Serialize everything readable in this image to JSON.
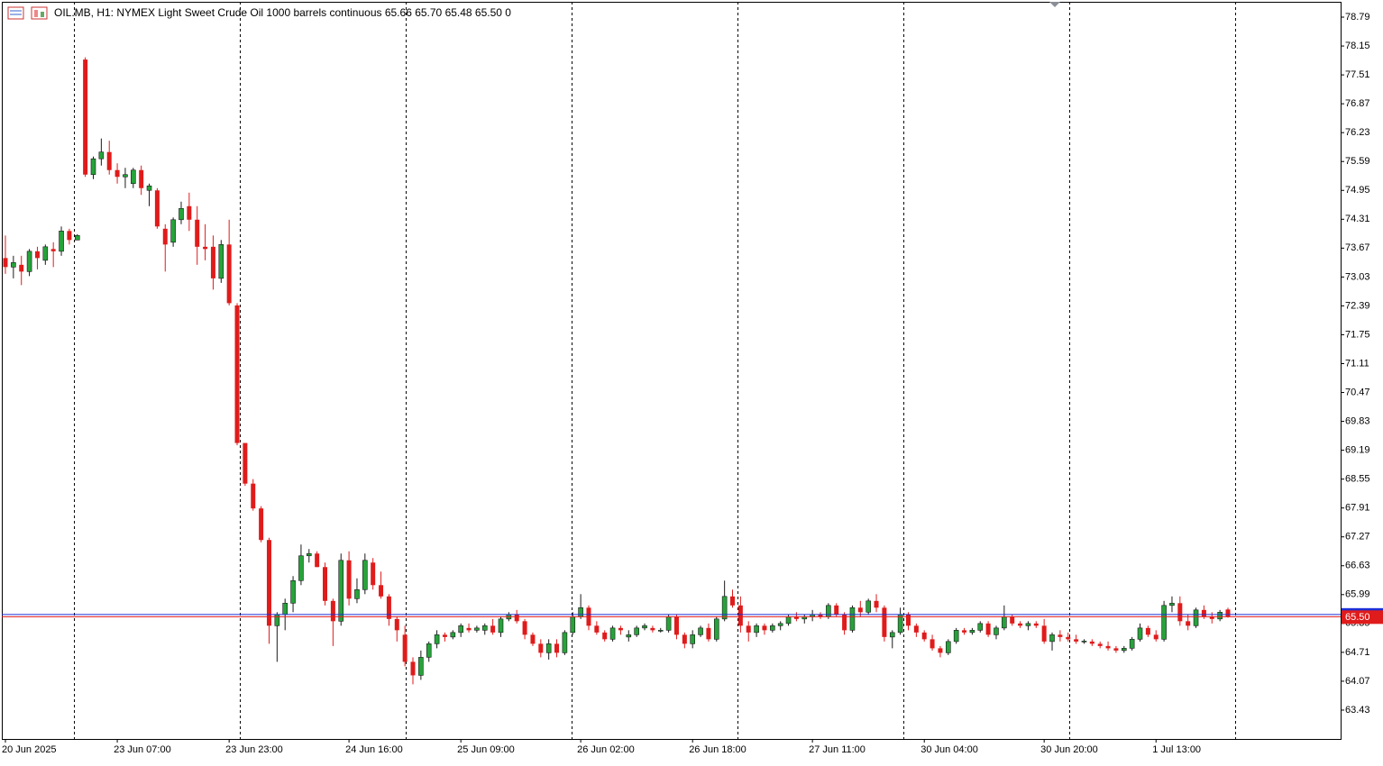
{
  "chart_data": {
    "type": "candlestick",
    "title": "OIL.MB, H1:  NYMEX Light Sweet Crude Oil 1000 barrels continuous  65.66 65.70 65.48 65.50  0",
    "up_color": "#26a33a",
    "down_color": "#e01b1b",
    "bid_color": "#e01b1b",
    "ask_color": "#1c2fd6",
    "ylim": [
      62.79,
      79.13
    ],
    "yticks": [
      78.79,
      78.15,
      77.51,
      76.87,
      76.23,
      75.59,
      74.95,
      74.31,
      73.67,
      73.03,
      72.39,
      71.75,
      71.11,
      70.47,
      69.83,
      69.19,
      68.55,
      67.91,
      67.27,
      66.63,
      65.99,
      65.35,
      64.71,
      64.07,
      63.43
    ],
    "xticks": [
      {
        "value": 0,
        "label": "20 Jun 2025"
      },
      {
        "value": 14,
        "label": "23 Jun 07:00"
      },
      {
        "value": 28,
        "label": "23 Jun 23:00"
      },
      {
        "value": 43,
        "label": "24 Jun 16:00"
      },
      {
        "value": 57,
        "label": "25 Jun 09:00"
      },
      {
        "value": 72,
        "label": "26 Jun 02:00"
      },
      {
        "value": 86,
        "label": "26 Jun 18:00"
      },
      {
        "value": 101,
        "label": "27 Jun 11:00"
      },
      {
        "value": 115,
        "label": "30 Jun 04:00"
      },
      {
        "value": 130,
        "label": "30 Jun 20:00"
      },
      {
        "value": 144,
        "label": "1 Jul 13:00"
      }
    ],
    "bid": {
      "value": 65.5,
      "label": "65.50"
    },
    "ask": 65.55,
    "candles": [
      [
        73.45,
        73.95,
        73.1,
        73.25
      ],
      [
        73.25,
        73.5,
        73.0,
        73.35
      ],
      [
        73.3,
        73.5,
        72.85,
        73.15
      ],
      [
        73.15,
        73.65,
        73.05,
        73.6
      ],
      [
        73.6,
        73.7,
        73.2,
        73.45
      ],
      [
        73.4,
        73.75,
        73.3,
        73.7
      ],
      [
        73.65,
        73.8,
        73.25,
        73.6
      ],
      [
        73.6,
        74.15,
        73.5,
        74.05
      ],
      [
        74.05,
        74.1,
        73.75,
        73.85
      ],
      [
        73.85,
        73.98,
        73.85,
        73.95
      ],
      [
        77.85,
        77.9,
        75.25,
        75.3
      ],
      [
        75.3,
        75.7,
        75.2,
        75.65
      ],
      [
        75.65,
        76.1,
        75.5,
        75.8
      ],
      [
        75.8,
        76.05,
        75.3,
        75.4
      ],
      [
        75.4,
        75.55,
        75.1,
        75.25
      ],
      [
        75.25,
        75.45,
        75.0,
        75.3
      ],
      [
        75.1,
        75.45,
        75.0,
        75.4
      ],
      [
        75.4,
        75.5,
        74.85,
        75.0
      ],
      [
        74.95,
        75.1,
        74.6,
        75.05
      ],
      [
        74.95,
        75.0,
        74.1,
        74.15
      ],
      [
        74.1,
        74.2,
        73.15,
        73.75
      ],
      [
        73.8,
        74.35,
        73.7,
        74.3
      ],
      [
        74.3,
        74.7,
        74.2,
        74.55
      ],
      [
        74.6,
        74.9,
        74.05,
        74.3
      ],
      [
        74.3,
        74.6,
        73.3,
        73.7
      ],
      [
        73.7,
        74.2,
        73.4,
        73.65
      ],
      [
        73.7,
        73.95,
        72.75,
        73.0
      ],
      [
        73.0,
        73.85,
        72.9,
        73.75
      ],
      [
        73.75,
        74.3,
        72.4,
        72.45
      ],
      [
        72.4,
        72.45,
        69.3,
        69.35
      ],
      [
        69.35,
        69.35,
        68.4,
        68.45
      ],
      [
        68.45,
        68.55,
        67.85,
        67.9
      ],
      [
        67.9,
        67.95,
        67.15,
        67.2
      ],
      [
        67.2,
        67.25,
        64.9,
        65.3
      ],
      [
        65.3,
        65.6,
        64.5,
        65.55
      ],
      [
        65.55,
        65.9,
        65.2,
        65.8
      ],
      [
        65.8,
        66.4,
        65.6,
        66.3
      ],
      [
        66.3,
        67.1,
        66.2,
        66.85
      ],
      [
        66.85,
        67.0,
        66.7,
        66.9
      ],
      [
        66.9,
        66.95,
        66.6,
        66.6
      ],
      [
        66.6,
        66.7,
        65.75,
        65.85
      ],
      [
        65.85,
        65.9,
        64.85,
        65.4
      ],
      [
        65.4,
        66.9,
        65.3,
        66.75
      ],
      [
        66.75,
        66.95,
        65.75,
        65.9
      ],
      [
        65.9,
        66.35,
        65.8,
        66.1
      ],
      [
        66.1,
        66.9,
        66.0,
        66.75
      ],
      [
        66.7,
        66.8,
        66.1,
        66.2
      ],
      [
        66.2,
        66.5,
        65.9,
        65.95
      ],
      [
        65.95,
        66.0,
        65.3,
        65.45
      ],
      [
        65.45,
        65.5,
        64.95,
        65.2
      ],
      [
        65.1,
        65.3,
        64.4,
        64.5
      ],
      [
        64.5,
        64.6,
        64.0,
        64.2
      ],
      [
        64.2,
        64.75,
        64.1,
        64.6
      ],
      [
        64.6,
        64.95,
        64.5,
        64.9
      ],
      [
        64.9,
        65.2,
        64.8,
        65.1
      ],
      [
        65.1,
        65.15,
        64.95,
        65.05
      ],
      [
        65.05,
        65.2,
        65.0,
        65.15
      ],
      [
        65.15,
        65.35,
        65.05,
        65.3
      ],
      [
        65.25,
        65.35,
        65.15,
        65.2
      ],
      [
        65.2,
        65.3,
        65.15,
        65.25
      ],
      [
        65.2,
        65.35,
        65.1,
        65.3
      ],
      [
        65.3,
        65.45,
        65.1,
        65.15
      ],
      [
        65.15,
        65.5,
        65.05,
        65.45
      ],
      [
        65.45,
        65.6,
        65.4,
        65.55
      ],
      [
        65.55,
        65.65,
        65.35,
        65.4
      ],
      [
        65.4,
        65.45,
        65.0,
        65.1
      ],
      [
        65.1,
        65.15,
        64.85,
        64.9
      ],
      [
        64.9,
        65.0,
        64.6,
        64.7
      ],
      [
        64.7,
        65.0,
        64.55,
        64.9
      ],
      [
        64.9,
        65.0,
        64.6,
        64.7
      ],
      [
        64.7,
        65.2,
        64.65,
        65.15
      ],
      [
        65.15,
        65.6,
        65.1,
        65.5
      ],
      [
        65.5,
        66.0,
        65.45,
        65.7
      ],
      [
        65.7,
        65.75,
        65.2,
        65.3
      ],
      [
        65.3,
        65.4,
        65.1,
        65.15
      ],
      [
        65.15,
        65.2,
        64.95,
        65.0
      ],
      [
        65.0,
        65.3,
        64.95,
        65.25
      ],
      [
        65.25,
        65.3,
        65.1,
        65.2
      ],
      [
        65.05,
        65.2,
        64.95,
        65.1
      ],
      [
        65.1,
        65.3,
        65.05,
        65.25
      ],
      [
        65.25,
        65.35,
        65.2,
        65.3
      ],
      [
        65.25,
        65.3,
        65.15,
        65.2
      ],
      [
        65.2,
        65.25,
        65.15,
        65.2
      ],
      [
        65.2,
        65.55,
        65.15,
        65.5
      ],
      [
        65.5,
        65.55,
        65.0,
        65.1
      ],
      [
        65.1,
        65.15,
        64.8,
        64.9
      ],
      [
        64.9,
        65.2,
        64.8,
        65.1
      ],
      [
        65.1,
        65.3,
        65.05,
        65.25
      ],
      [
        65.25,
        65.35,
        64.95,
        65.0
      ],
      [
        65.0,
        65.5,
        64.95,
        65.45
      ],
      [
        65.45,
        66.3,
        65.4,
        65.95
      ],
      [
        65.95,
        66.1,
        65.7,
        65.75
      ],
      [
        65.75,
        65.95,
        65.15,
        65.3
      ],
      [
        65.3,
        65.4,
        64.95,
        65.15
      ],
      [
        65.15,
        65.35,
        65.05,
        65.3
      ],
      [
        65.3,
        65.35,
        65.1,
        65.2
      ],
      [
        65.2,
        65.35,
        65.15,
        65.3
      ],
      [
        65.3,
        65.4,
        65.2,
        65.35
      ],
      [
        65.35,
        65.55,
        65.3,
        65.5
      ],
      [
        65.5,
        65.6,
        65.4,
        65.45
      ],
      [
        65.45,
        65.55,
        65.35,
        65.5
      ],
      [
        65.5,
        65.65,
        65.4,
        65.55
      ],
      [
        65.55,
        65.6,
        65.45,
        65.5
      ],
      [
        65.5,
        65.8,
        65.45,
        65.75
      ],
      [
        65.75,
        65.8,
        65.5,
        65.55
      ],
      [
        65.55,
        65.6,
        65.1,
        65.2
      ],
      [
        65.2,
        65.75,
        65.15,
        65.7
      ],
      [
        65.7,
        65.85,
        65.5,
        65.6
      ],
      [
        65.6,
        65.9,
        65.55,
        65.85
      ],
      [
        65.85,
        66.0,
        65.6,
        65.7
      ],
      [
        65.7,
        65.75,
        64.95,
        65.05
      ],
      [
        65.05,
        65.2,
        64.8,
        65.15
      ],
      [
        65.15,
        65.7,
        65.1,
        65.55
      ],
      [
        65.55,
        65.6,
        65.2,
        65.3
      ],
      [
        65.3,
        65.35,
        65.05,
        65.15
      ],
      [
        65.15,
        65.2,
        64.95,
        65.0
      ],
      [
        65.0,
        65.1,
        64.75,
        64.8
      ],
      [
        64.8,
        64.85,
        64.6,
        64.7
      ],
      [
        64.7,
        65.0,
        64.65,
        64.95
      ],
      [
        64.95,
        65.25,
        64.9,
        65.2
      ],
      [
        65.2,
        65.25,
        65.1,
        65.15
      ],
      [
        65.15,
        65.25,
        65.1,
        65.2
      ],
      [
        65.2,
        65.4,
        65.15,
        65.35
      ],
      [
        65.35,
        65.4,
        65.05,
        65.1
      ],
      [
        65.1,
        65.3,
        65.0,
        65.25
      ],
      [
        65.25,
        65.75,
        65.2,
        65.5
      ],
      [
        65.5,
        65.55,
        65.3,
        65.35
      ],
      [
        65.35,
        65.4,
        65.25,
        65.3
      ],
      [
        65.3,
        65.4,
        65.2,
        65.35
      ],
      [
        65.35,
        65.4,
        65.25,
        65.3
      ],
      [
        65.3,
        65.45,
        64.9,
        64.95
      ],
      [
        64.95,
        65.15,
        64.75,
        65.1
      ],
      [
        65.1,
        65.2,
        64.95,
        65.05
      ],
      [
        65.05,
        65.15,
        64.95,
        65.0
      ],
      [
        65.0,
        65.1,
        64.9,
        64.95
      ],
      [
        64.95,
        65.0,
        64.9,
        64.96
      ],
      [
        64.95,
        65.0,
        64.85,
        64.9
      ],
      [
        64.9,
        64.95,
        64.8,
        64.85
      ],
      [
        64.85,
        64.95,
        64.75,
        64.8
      ],
      [
        64.8,
        64.85,
        64.7,
        64.75
      ],
      [
        64.75,
        64.85,
        64.7,
        64.8
      ],
      [
        64.8,
        65.05,
        64.75,
        65.0
      ],
      [
        65.0,
        65.35,
        64.95,
        65.25
      ],
      [
        65.25,
        65.3,
        65.05,
        65.1
      ],
      [
        65.1,
        65.2,
        64.95,
        65.0
      ],
      [
        65.0,
        65.85,
        64.95,
        65.75
      ],
      [
        65.75,
        65.95,
        65.6,
        65.8
      ],
      [
        65.8,
        65.95,
        65.3,
        65.4
      ],
      [
        65.4,
        65.55,
        65.2,
        65.3
      ],
      [
        65.3,
        65.7,
        65.25,
        65.65
      ],
      [
        65.65,
        65.75,
        65.45,
        65.5
      ],
      [
        65.5,
        65.6,
        65.35,
        65.45
      ],
      [
        65.45,
        65.65,
        65.4,
        65.6
      ],
      [
        65.66,
        65.7,
        65.48,
        65.5
      ]
    ]
  }
}
